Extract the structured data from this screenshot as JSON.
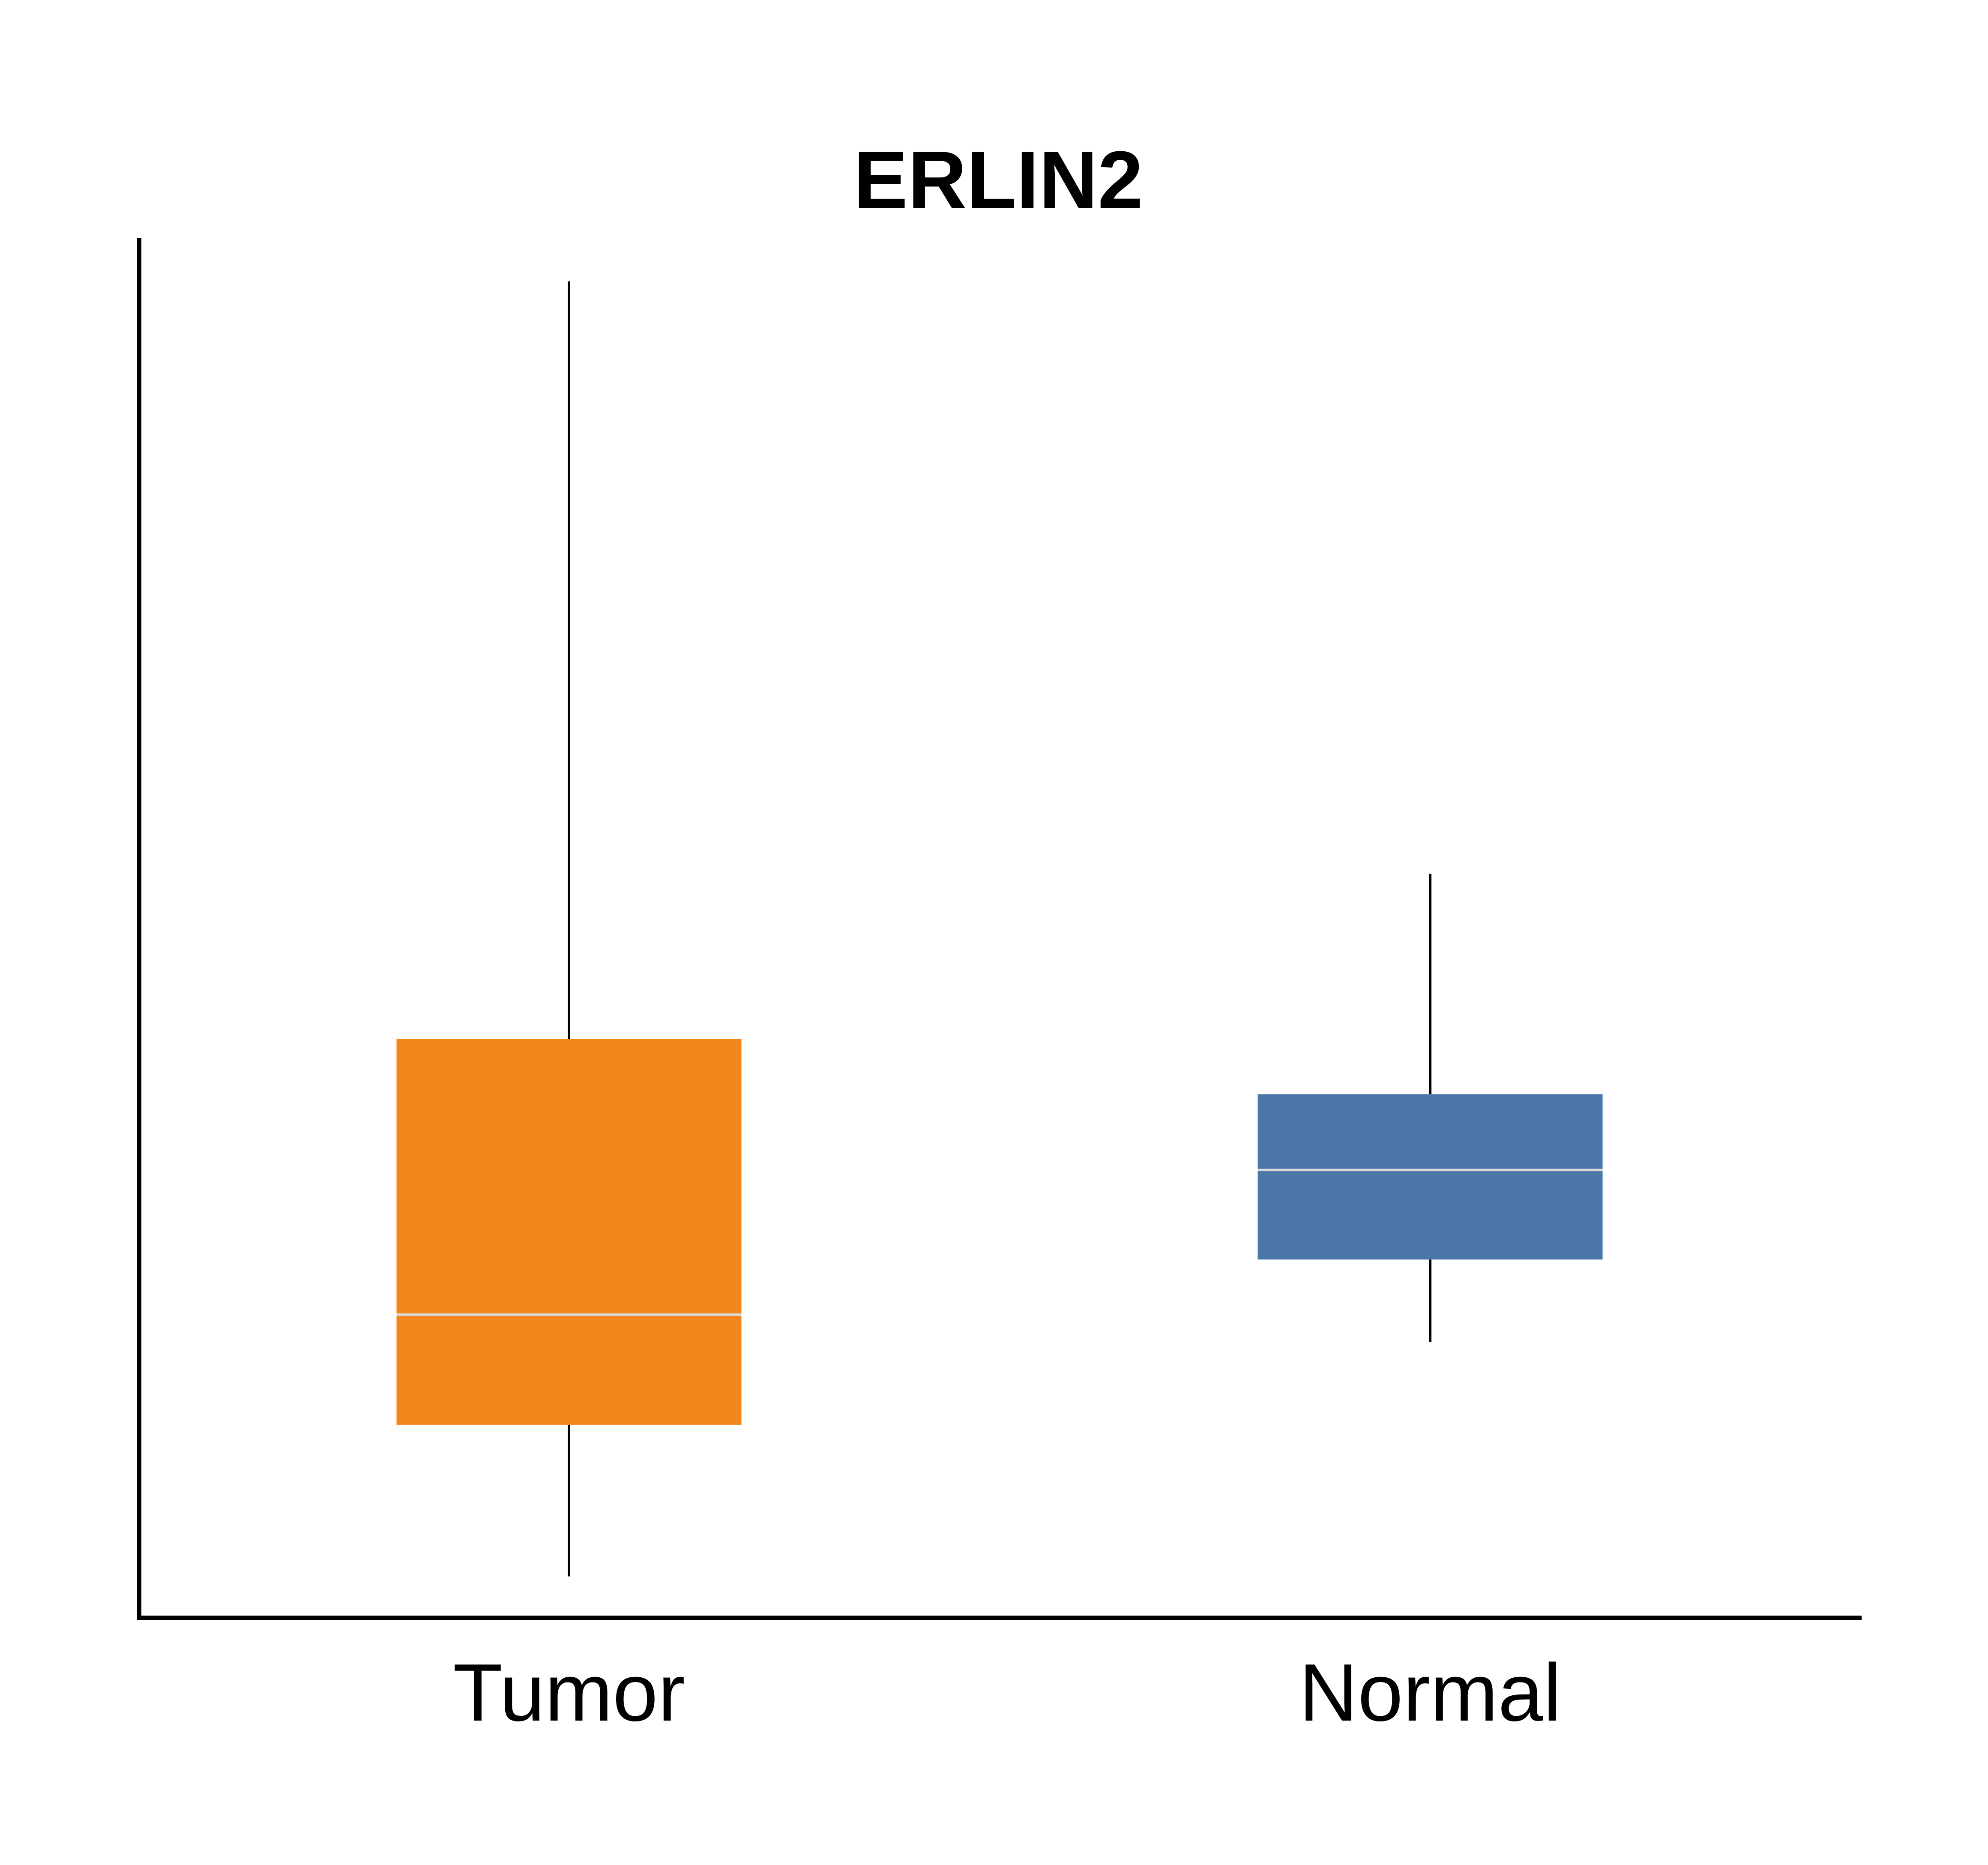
{
  "chart_data": {
    "type": "box",
    "title": "ERLIN2",
    "xlabel": "",
    "ylabel": "",
    "categories": [
      "Tumor",
      "Normal"
    ],
    "boxes": [
      {
        "category": "Tumor",
        "whisker_low": 0.03,
        "q1": 0.14,
        "median": 0.22,
        "q3": 0.42,
        "whisker_high": 0.97,
        "color": "#F4871C"
      },
      {
        "category": "Normal",
        "whisker_low": 0.2,
        "q1": 0.26,
        "median": 0.325,
        "q3": 0.38,
        "whisker_high": 0.54,
        "color": "#4A76A8"
      }
    ],
    "ylim": [
      0,
      1
    ],
    "grid": false,
    "legend": "none"
  }
}
